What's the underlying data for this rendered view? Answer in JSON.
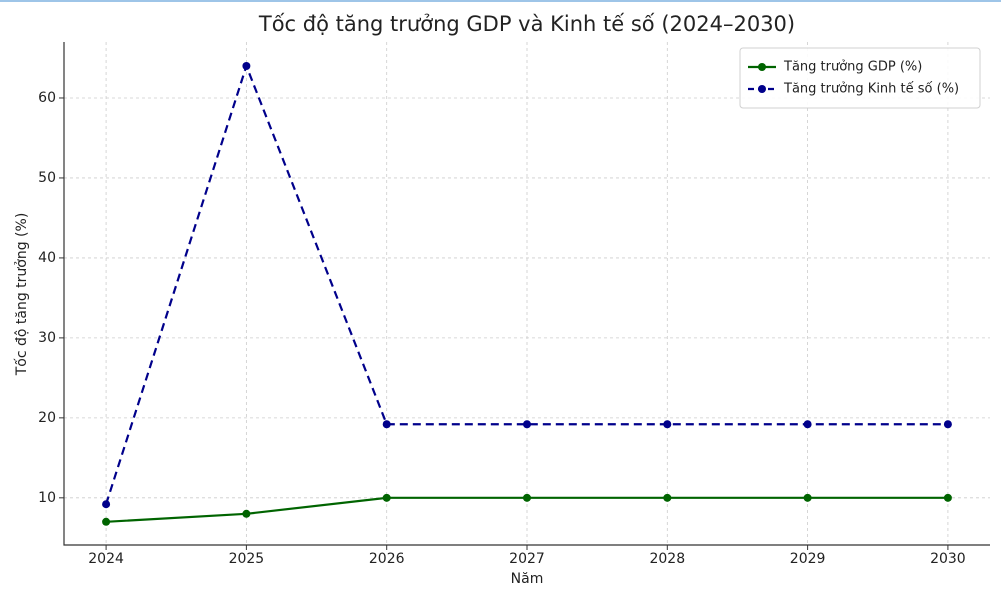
{
  "chart_data": {
    "type": "line",
    "title": "Tốc độ tăng trưởng GDP và Kinh tế số (2024–2030)",
    "xlabel": "Năm",
    "ylabel": "Tốc độ tăng trưởng (%)",
    "x": [
      2024,
      2025,
      2026,
      2027,
      2028,
      2029,
      2030
    ],
    "series": [
      {
        "name": "Tăng trưởng GDP (%)",
        "color": "#006400",
        "dash": false,
        "values": [
          7,
          8,
          10,
          10,
          10,
          10,
          10
        ]
      },
      {
        "name": "Tăng trưởng Kinh tế số (%)",
        "color": "#00008b",
        "dash": true,
        "values": [
          9.2,
          64,
          19.2,
          19.2,
          19.2,
          19.2,
          19.2
        ]
      }
    ],
    "xlim": [
      2023.7,
      2030.3
    ],
    "xticks": [
      2024,
      2025,
      2026,
      2027,
      2028,
      2029,
      2030
    ],
    "ylim": [
      4.1,
      67
    ],
    "yticks": [
      10,
      20,
      30,
      40,
      50,
      60
    ],
    "grid": true,
    "legend": "upper-right"
  }
}
